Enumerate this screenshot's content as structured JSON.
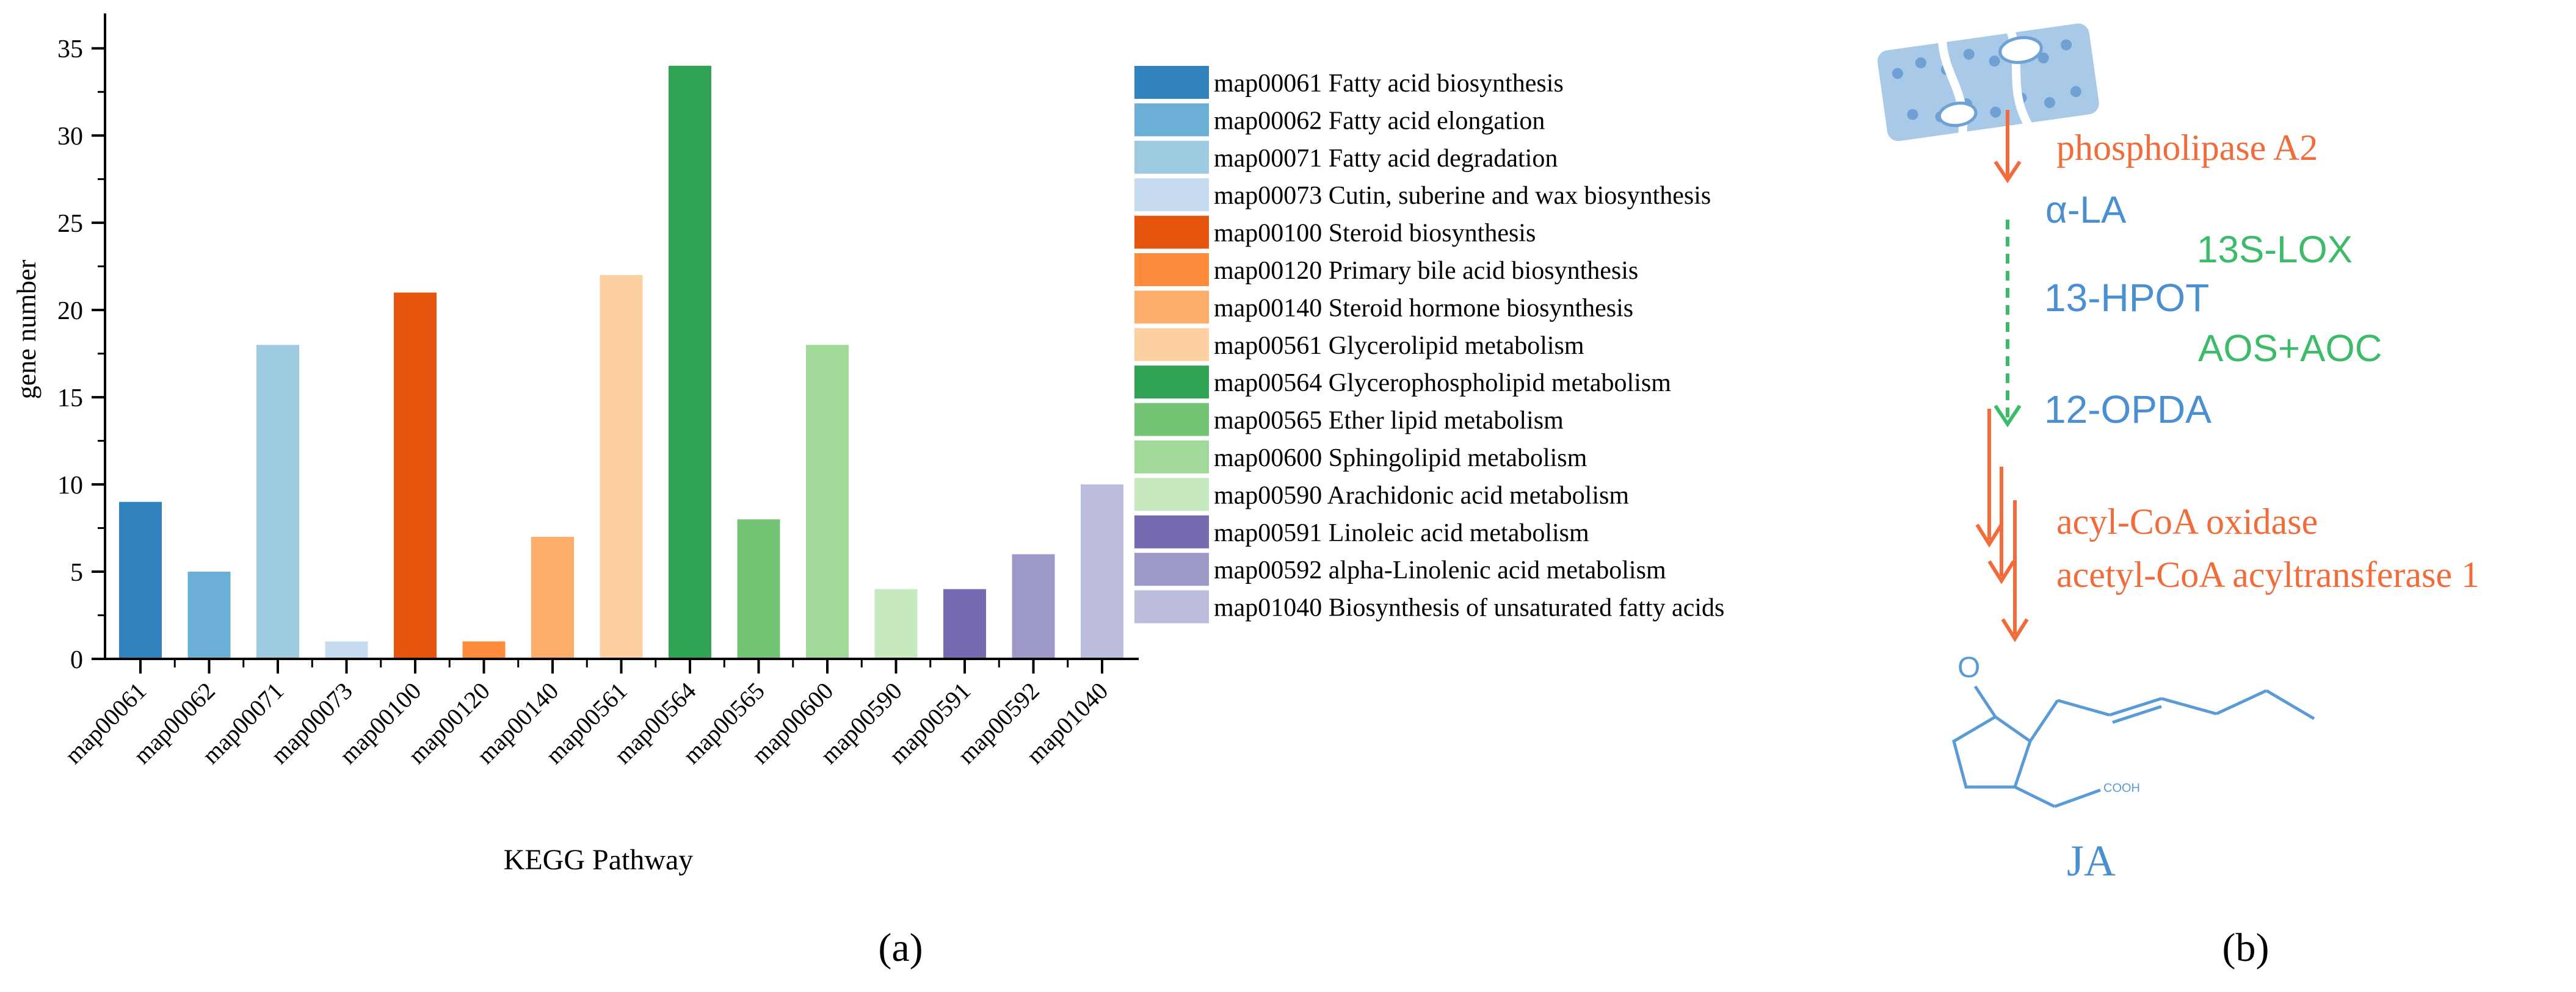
{
  "chart_data": {
    "type": "bar",
    "panel_label": "(a)",
    "title": "",
    "xlabel": "KEGG Pathway",
    "ylabel": "gene number",
    "ylim": [
      0,
      37
    ],
    "yticks": [
      0,
      5,
      10,
      15,
      20,
      25,
      30,
      35
    ],
    "grid": false,
    "legend_position": "right",
    "categories": [
      "map00061",
      "map00062",
      "map00071",
      "map00073",
      "map00100",
      "map00120",
      "map00140",
      "map00561",
      "map00564",
      "map00565",
      "map00600",
      "map00590",
      "map00591",
      "map00592",
      "map01040"
    ],
    "values": [
      9,
      5,
      18,
      1,
      21,
      1,
      7,
      22,
      34,
      8,
      18,
      4,
      4,
      6,
      10
    ],
    "colors": [
      "#3182bd",
      "#6baed6",
      "#9ecae1",
      "#c6dbef",
      "#e6550d",
      "#fd8d3c",
      "#fdae6b",
      "#fdd0a2",
      "#31a354",
      "#74c476",
      "#a1d99b",
      "#c7e9c0",
      "#756bb1",
      "#9e9ac8",
      "#bcbddc"
    ],
    "legend": [
      "map00061 Fatty acid biosynthesis",
      "map00062 Fatty acid elongation",
      "map00071 Fatty acid degradation",
      "map00073 Cutin, suberine and wax biosynthesis",
      "map00100 Steroid biosynthesis",
      "map00120 Primary bile acid biosynthesis",
      "map00140 Steroid hormone biosynthesis",
      "map00561 Glycerolipid metabolism",
      "map00564 Glycerophospholipid metabolism",
      "map00565 Ether lipid metabolism",
      "map00600 Sphingolipid metabolism",
      "map00590 Arachidonic acid metabolism",
      "map00591 Linoleic acid metabolism",
      "map00592 alpha-Linolenic acid metabolism",
      "map01040 Biosynthesis of unsaturated fatty acids"
    ]
  },
  "pathway": {
    "panel_label": "(b)",
    "enzyme_1": "phospholipase A2",
    "metabolite_1": "α-LA",
    "enzyme_2": "13S-LOX",
    "metabolite_2": "13-HPOT",
    "enzyme_3": "AOS+AOC",
    "metabolite_3": "12-OPDA",
    "enzyme_4": "acyl-CoA oxidase",
    "enzyme_5": "acetyl-CoA acyltransferase 1",
    "product": "JA",
    "colors": {
      "enzyme": "#f26b3a",
      "metabolite": "#4a8fd0",
      "lox": "#3dbb6a",
      "structure": "#5b9bd5"
    }
  }
}
